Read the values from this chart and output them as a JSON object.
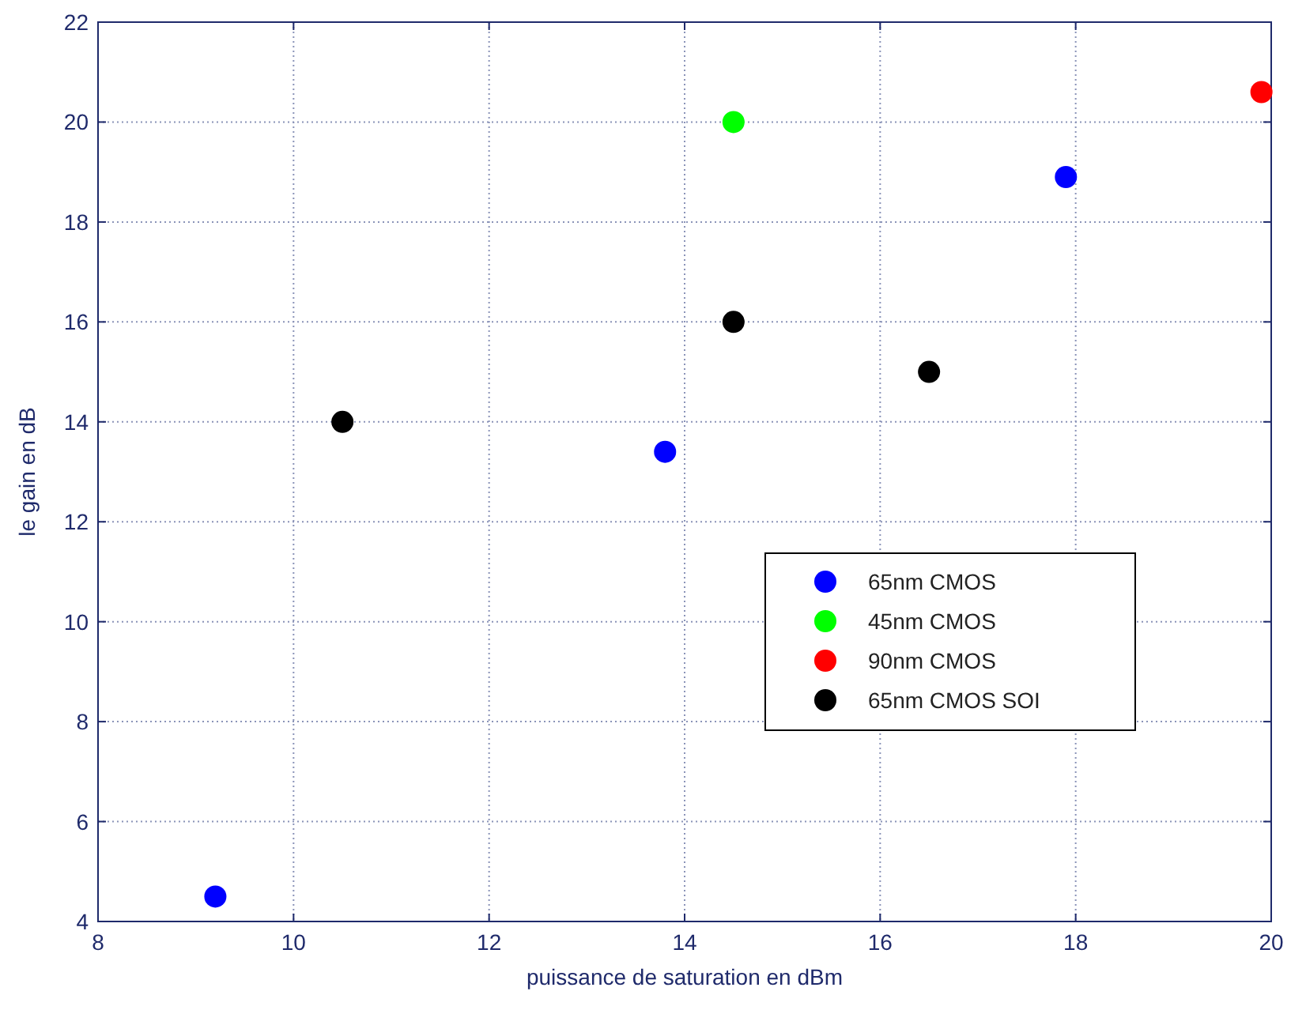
{
  "chart_data": {
    "type": "scatter",
    "xlabel": "puissance de saturation en dBm",
    "ylabel": "le gain en dB",
    "xlim": [
      8,
      20
    ],
    "xticks": [
      8,
      10,
      12,
      14,
      16,
      18,
      20
    ],
    "ylim": [
      4,
      22
    ],
    "yticks": [
      4,
      6,
      8,
      10,
      12,
      14,
      16,
      18,
      20,
      22
    ],
    "grid": true,
    "legend": "right",
    "marker": "circle",
    "series": [
      {
        "name": "65nm CMOS",
        "color": "#0000ff",
        "x": [
          9.2,
          13.8,
          17.9
        ],
        "values": [
          4.5,
          13.4,
          18.9
        ]
      },
      {
        "name": "45nm CMOS",
        "color": "#00ff00",
        "x": [
          14.5
        ],
        "values": [
          20
        ]
      },
      {
        "name": "90nm CMOS",
        "color": "#ff0000",
        "x": [
          19.9
        ],
        "values": [
          20.6
        ]
      },
      {
        "name": "65nm CMOS SOI",
        "color": "#000000",
        "x": [
          10.5,
          14.5,
          16.5
        ],
        "values": [
          14,
          16,
          15
        ]
      }
    ]
  }
}
